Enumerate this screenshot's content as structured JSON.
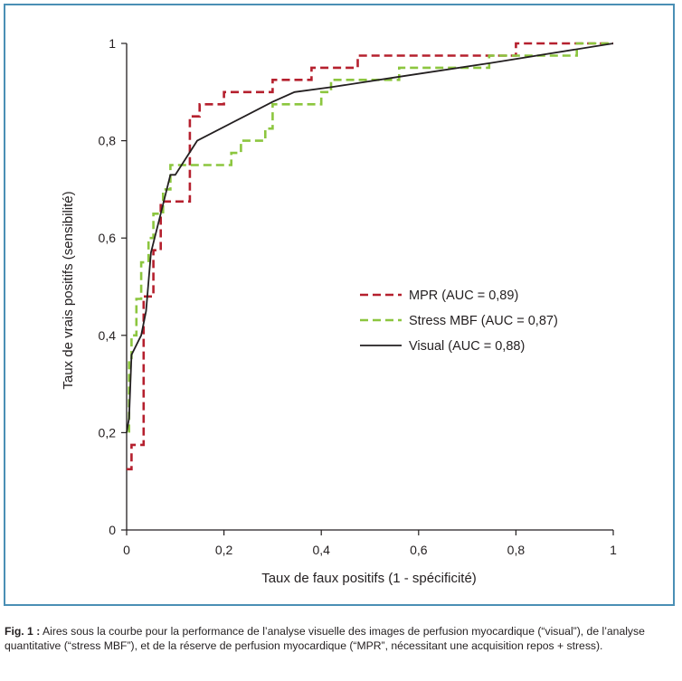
{
  "chart_data": {
    "type": "line",
    "xlabel": "Taux de faux positifs (1 - spécificité)",
    "ylabel": "Taux de vrais positifs (sensibilité)",
    "xlim": [
      0,
      1
    ],
    "ylim": [
      0,
      1
    ],
    "x_ticks": [
      "0",
      "0,2",
      "0,4",
      "0,6",
      "0,8",
      "1"
    ],
    "y_ticks": [
      "0",
      "0,2",
      "0,4",
      "0,6",
      "0,8",
      "1"
    ],
    "grid": false,
    "legend_position": "center-right",
    "series": [
      {
        "name": "MPR (AUC = 0,89)",
        "color": "#b5202e",
        "dash": "dashed",
        "points": [
          [
            0,
            0.125
          ],
          [
            0.01,
            0.125
          ],
          [
            0.01,
            0.175
          ],
          [
            0.035,
            0.175
          ],
          [
            0.035,
            0.48
          ],
          [
            0.055,
            0.48
          ],
          [
            0.055,
            0.575
          ],
          [
            0.07,
            0.575
          ],
          [
            0.07,
            0.675
          ],
          [
            0.13,
            0.675
          ],
          [
            0.13,
            0.85
          ],
          [
            0.15,
            0.85
          ],
          [
            0.15,
            0.875
          ],
          [
            0.2,
            0.875
          ],
          [
            0.2,
            0.9
          ],
          [
            0.3,
            0.9
          ],
          [
            0.3,
            0.925
          ],
          [
            0.38,
            0.925
          ],
          [
            0.38,
            0.95
          ],
          [
            0.475,
            0.95
          ],
          [
            0.475,
            0.975
          ],
          [
            0.8,
            0.975
          ],
          [
            0.8,
            1
          ],
          [
            1,
            1
          ]
        ]
      },
      {
        "name": "Stress MBF (AUC = 0,87)",
        "color": "#8cc63f",
        "dash": "dashed",
        "points": [
          [
            0.005,
            0.2
          ],
          [
            0.005,
            0.35
          ],
          [
            0.01,
            0.35
          ],
          [
            0.01,
            0.4
          ],
          [
            0.02,
            0.4
          ],
          [
            0.02,
            0.475
          ],
          [
            0.03,
            0.475
          ],
          [
            0.03,
            0.55
          ],
          [
            0.045,
            0.55
          ],
          [
            0.045,
            0.6
          ],
          [
            0.055,
            0.6
          ],
          [
            0.055,
            0.65
          ],
          [
            0.075,
            0.65
          ],
          [
            0.075,
            0.7
          ],
          [
            0.09,
            0.7
          ],
          [
            0.09,
            0.75
          ],
          [
            0.215,
            0.75
          ],
          [
            0.215,
            0.775
          ],
          [
            0.235,
            0.775
          ],
          [
            0.235,
            0.8
          ],
          [
            0.285,
            0.8
          ],
          [
            0.285,
            0.825
          ],
          [
            0.3,
            0.825
          ],
          [
            0.3,
            0.875
          ],
          [
            0.4,
            0.875
          ],
          [
            0.4,
            0.9
          ],
          [
            0.42,
            0.9
          ],
          [
            0.42,
            0.925
          ],
          [
            0.56,
            0.925
          ],
          [
            0.56,
            0.95
          ],
          [
            0.745,
            0.95
          ],
          [
            0.745,
            0.975
          ],
          [
            0.925,
            0.975
          ],
          [
            0.925,
            1
          ],
          [
            1,
            1
          ]
        ]
      },
      {
        "name": "Visual (AUC = 0,88)",
        "color": "#231f20",
        "dash": "solid",
        "points": [
          [
            0,
            0.2
          ],
          [
            0.005,
            0.23
          ],
          [
            0.01,
            0.36
          ],
          [
            0.03,
            0.4
          ],
          [
            0.04,
            0.45
          ],
          [
            0.05,
            0.57
          ],
          [
            0.07,
            0.65
          ],
          [
            0.09,
            0.73
          ],
          [
            0.1,
            0.73
          ],
          [
            0.145,
            0.8
          ],
          [
            0.3,
            0.88
          ],
          [
            0.345,
            0.9
          ],
          [
            0.42,
            0.91
          ],
          [
            0.55,
            0.93
          ],
          [
            0.75,
            0.96
          ],
          [
            1,
            1
          ]
        ]
      }
    ]
  },
  "caption": {
    "lead": "Fig. 1 :",
    "text": " Aires sous la courbe pour la performance de l’analyse visuelle des images de perfusion myocardique (“visual”), de l’analyse quantitative (“stress MBF”), et de la réserve de perfusion myocardique (“MPR”, nécessitant une acquisition repos + stress)."
  }
}
